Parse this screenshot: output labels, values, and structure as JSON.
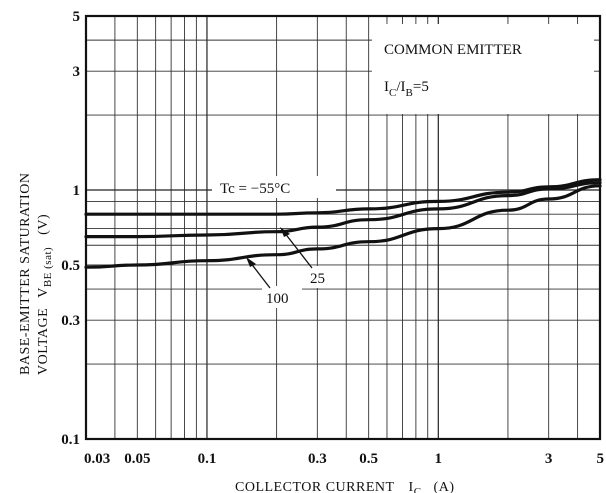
{
  "chart_data": {
    "type": "line",
    "x_scale": "log",
    "y_scale": "log",
    "xlim": [
      0.03,
      5
    ],
    "ylim": [
      0.1,
      5
    ],
    "xlabel": {
      "main": "COLLECTOR CURRENT",
      "symbol": "I",
      "subscript": "C",
      "unit": "(A)"
    },
    "ylabel": {
      "line1": "BASE-EMITTER SATURATION",
      "line2_main": "VOLTAGE",
      "symbol": "V",
      "subscript": "BE (sat)",
      "unit": "(V)"
    },
    "x_ticks": [
      {
        "value": 0.03,
        "label": "0.03"
      },
      {
        "value": 0.05,
        "label": "0.05"
      },
      {
        "value": 0.1,
        "label": "0.1"
      },
      {
        "value": 0.3,
        "label": "0.3"
      },
      {
        "value": 0.5,
        "label": "0.5"
      },
      {
        "value": 1,
        "label": "1"
      },
      {
        "value": 3,
        "label": "3"
      },
      {
        "value": 5,
        "label": "5"
      }
    ],
    "y_ticks": [
      {
        "value": 0.1,
        "label": "0.1"
      },
      {
        "value": 0.3,
        "label": "0.3"
      },
      {
        "value": 0.5,
        "label": "0.5"
      },
      {
        "value": 1,
        "label": "1"
      },
      {
        "value": 3,
        "label": "3"
      },
      {
        "value": 5,
        "label": "5"
      }
    ],
    "legend_box": {
      "line1": "COMMON EMITTER",
      "line2_symbol1": "I",
      "line2_sub1": "C",
      "line2_sep": "/",
      "line2_symbol2": "I",
      "line2_sub2": "B",
      "line2_value": "=5",
      "placement": "top-right"
    },
    "series": [
      {
        "name": "Tc = −55°C",
        "x": [
          0.03,
          0.05,
          0.1,
          0.2,
          0.3,
          0.5,
          1,
          2,
          3,
          5
        ],
        "y": [
          0.8,
          0.8,
          0.8,
          0.8,
          0.81,
          0.84,
          0.9,
          0.98,
          1.03,
          1.1
        ]
      },
      {
        "name": "25",
        "x": [
          0.03,
          0.05,
          0.1,
          0.2,
          0.3,
          0.5,
          1,
          2,
          3,
          5
        ],
        "y": [
          0.65,
          0.65,
          0.66,
          0.68,
          0.71,
          0.76,
          0.84,
          0.95,
          1.01,
          1.07
        ]
      },
      {
        "name": "100",
        "x": [
          0.03,
          0.05,
          0.1,
          0.2,
          0.3,
          0.5,
          1,
          2,
          3,
          5
        ],
        "y": [
          0.49,
          0.5,
          0.52,
          0.55,
          0.58,
          0.62,
          0.7,
          0.83,
          0.92,
          1.04
        ]
      }
    ],
    "annotations": [
      {
        "text": "Tc = −55°C",
        "series": "Tc = −55°C"
      },
      {
        "text": "25",
        "series": "25"
      },
      {
        "text": "100",
        "series": "100"
      }
    ],
    "grid": true
  }
}
